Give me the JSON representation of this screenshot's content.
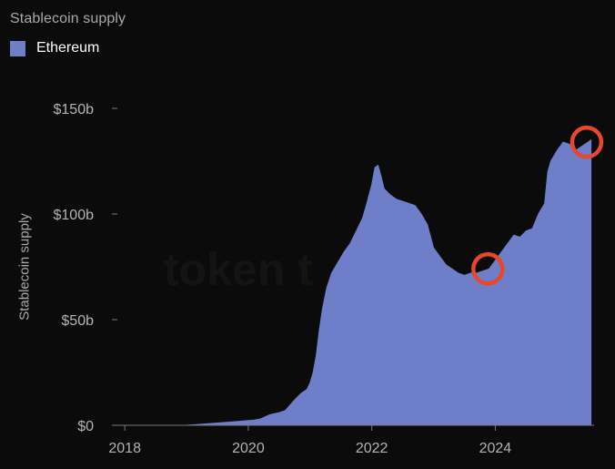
{
  "chart_data": {
    "type": "area",
    "title": "Stablecoin supply",
    "ylabel": "Stablecoin supply",
    "xlabel": "",
    "watermark": "token t",
    "legend": {
      "placement": "top-left"
    },
    "grid": false,
    "xlim": [
      2017.85,
      2025.6
    ],
    "ylim": [
      0,
      150
    ],
    "y_ticks": [
      {
        "value": 0,
        "label": "$0"
      },
      {
        "value": 50,
        "label": "$50b"
      },
      {
        "value": 100,
        "label": "$100b"
      },
      {
        "value": 150,
        "label": "$150b"
      }
    ],
    "x_ticks": [
      {
        "value": 2018,
        "label": "2018"
      },
      {
        "value": 2020,
        "label": "2020"
      },
      {
        "value": 2022,
        "label": "2022"
      },
      {
        "value": 2024,
        "label": "2024"
      }
    ],
    "series": [
      {
        "name": "Ethereum",
        "color": "#6e7ec8",
        "x": [
          2017.85,
          2019.0,
          2019.45,
          2019.7,
          2019.9,
          2020.1,
          2020.2,
          2020.35,
          2020.5,
          2020.6,
          2020.75,
          2020.85,
          2020.95,
          2021.0,
          2021.05,
          2021.1,
          2021.15,
          2021.2,
          2021.27,
          2021.35,
          2021.45,
          2021.55,
          2021.65,
          2021.75,
          2021.85,
          2021.92,
          2022.0,
          2022.05,
          2022.1,
          2022.15,
          2022.2,
          2022.3,
          2022.4,
          2022.5,
          2022.6,
          2022.7,
          2022.8,
          2022.9,
          2023.0,
          2023.1,
          2023.2,
          2023.3,
          2023.4,
          2023.5,
          2023.6,
          2023.7,
          2023.8,
          2023.9,
          2024.0,
          2024.1,
          2024.2,
          2024.3,
          2024.4,
          2024.5,
          2024.6,
          2024.7,
          2024.8,
          2024.85,
          2024.9,
          2025.0,
          2025.1,
          2025.2,
          2025.3,
          2025.4,
          2025.5,
          2025.55
        ],
        "values": [
          0,
          0,
          1,
          1.5,
          2,
          2.5,
          3,
          5,
          6,
          7,
          12,
          15,
          17,
          20,
          25,
          33,
          45,
          55,
          65,
          72,
          77,
          82,
          86,
          92,
          98,
          105,
          114,
          122,
          123,
          118,
          112,
          109,
          107,
          106,
          105,
          104,
          100,
          95,
          84,
          80,
          76,
          74,
          72,
          71,
          72,
          72,
          73,
          74,
          78,
          82,
          86,
          90,
          89,
          92,
          93,
          100,
          105,
          120,
          125,
          130,
          134,
          133,
          130,
          132,
          134,
          135
        ]
      }
    ],
    "annotations": [
      {
        "type": "circle",
        "x": 2023.88,
        "y": 74,
        "color": "#e8472f"
      },
      {
        "type": "circle",
        "x": 2025.48,
        "y": 134,
        "color": "#e8472f"
      }
    ]
  }
}
